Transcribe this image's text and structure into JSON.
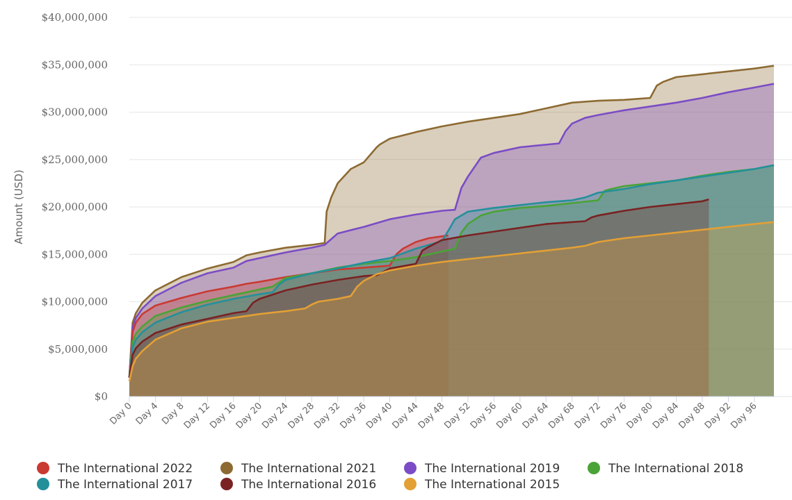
{
  "chart_data": {
    "type": "area",
    "ylabel": "Amount (USD)",
    "ylim": [
      0,
      40000000
    ],
    "y_ticks": [
      "$0",
      "$5,000,000",
      "$10,000,000",
      "$15,000,000",
      "$20,000,000",
      "$25,000,000",
      "$30,000,000",
      "$35,000,000",
      "$40,000,000"
    ],
    "y_tick_values": [
      0,
      5000000,
      10000000,
      15000000,
      20000000,
      25000000,
      30000000,
      35000000,
      40000000
    ],
    "xlim": [
      0,
      99
    ],
    "x_ticks": [
      "Day 0",
      "Day 4",
      "Day 8",
      "Day 12",
      "Day 16",
      "Day 20",
      "Day 24",
      "Day 28",
      "Day 32",
      "Day 36",
      "Day 40",
      "Day 44",
      "Day 48",
      "Day 52",
      "Day 56",
      "Day 60",
      "Day 64",
      "Day 68",
      "Day 72",
      "Day 76",
      "Day 80",
      "Day 84",
      "Day 88",
      "Day 92",
      "Day 96"
    ],
    "x_tick_values": [
      0,
      4,
      8,
      12,
      16,
      20,
      24,
      28,
      32,
      36,
      40,
      44,
      48,
      52,
      56,
      60,
      64,
      68,
      72,
      76,
      80,
      84,
      88,
      92,
      96
    ],
    "legend_position": "bottom",
    "series": [
      {
        "name": "The International 2021",
        "color": "#8c6a32",
        "x": [
          0,
          0.5,
          1,
          2,
          4,
          8,
          12,
          16,
          18,
          20,
          24,
          28,
          30,
          30.3,
          31,
          32,
          34,
          36,
          38,
          38.5,
          40,
          44,
          48,
          52,
          56,
          60,
          64,
          68,
          72,
          76,
          80,
          81,
          82,
          84,
          88,
          92,
          96,
          99
        ],
        "y": [
          2000000,
          7800000,
          8800000,
          9900000,
          11200000,
          12600000,
          13500000,
          14200000,
          14900000,
          15200000,
          15700000,
          16000000,
          16200000,
          19500000,
          21000000,
          22500000,
          24000000,
          24700000,
          26300000,
          26600000,
          27200000,
          27900000,
          28500000,
          29000000,
          29400000,
          29800000,
          30400000,
          31000000,
          31200000,
          31300000,
          31500000,
          32800000,
          33200000,
          33700000,
          34000000,
          34300000,
          34600000,
          34900000
        ]
      },
      {
        "name": "The International 2019",
        "color": "#7b4cc5",
        "x": [
          0,
          0.5,
          1,
          2,
          4,
          8,
          12,
          16,
          18,
          20,
          24,
          28,
          30,
          31,
          32,
          36,
          40,
          44,
          48,
          50,
          51,
          52,
          54,
          56,
          60,
          66,
          67,
          68,
          70,
          72,
          76,
          80,
          84,
          88,
          92,
          96,
          99
        ],
        "y": [
          2000000,
          7300000,
          8300000,
          9300000,
          10600000,
          12000000,
          13000000,
          13600000,
          14300000,
          14600000,
          15200000,
          15700000,
          16000000,
          16600000,
          17200000,
          17900000,
          18700000,
          19200000,
          19600000,
          19700000,
          22000000,
          23200000,
          25200000,
          25700000,
          26300000,
          26700000,
          28000000,
          28800000,
          29400000,
          29700000,
          30200000,
          30600000,
          31000000,
          31500000,
          32100000,
          32600000,
          33000000
        ]
      },
      {
        "name": "The International 2022",
        "color": "#c93a32",
        "x": [
          0,
          0.5,
          1,
          2,
          4,
          8,
          12,
          16,
          18,
          20,
          24,
          28,
          32,
          36,
          40,
          41,
          42,
          44,
          46,
          48,
          49
        ],
        "y": [
          2000000,
          6800000,
          7800000,
          8700000,
          9600000,
          10400000,
          11100000,
          11600000,
          11900000,
          12100000,
          12600000,
          13000000,
          13400000,
          13600000,
          13800000,
          15000000,
          15600000,
          16300000,
          16700000,
          16900000,
          17000000
        ]
      },
      {
        "name": "The International 2018",
        "color": "#4aa336",
        "x": [
          0,
          0.5,
          1,
          2,
          4,
          8,
          12,
          16,
          20,
          22,
          24,
          28,
          32,
          36,
          40,
          44,
          46,
          48,
          50,
          51,
          52,
          54,
          56,
          60,
          64,
          68,
          72,
          73,
          74,
          76,
          80,
          84,
          88,
          92,
          96,
          99
        ],
        "y": [
          2000000,
          5800000,
          6600000,
          7400000,
          8500000,
          9400000,
          10100000,
          10700000,
          11300000,
          11600000,
          12500000,
          13000000,
          13600000,
          14000000,
          14300000,
          14700000,
          15000000,
          15300000,
          15600000,
          17300000,
          18200000,
          19100000,
          19500000,
          19900000,
          20100000,
          20400000,
          20700000,
          21700000,
          21900000,
          22200000,
          22500000,
          22800000,
          23300000,
          23700000,
          24000000,
          24400000
        ]
      },
      {
        "name": "The International 2017",
        "color": "#23909a",
        "x": [
          0,
          0.5,
          1,
          2,
          4,
          8,
          12,
          16,
          20,
          22,
          23,
          24,
          28,
          32,
          36,
          40,
          44,
          46,
          48,
          49,
          50,
          52,
          56,
          60,
          64,
          68,
          70,
          72,
          76,
          80,
          84,
          88,
          92,
          96,
          99
        ],
        "y": [
          2000000,
          5200000,
          6000000,
          6800000,
          7800000,
          8900000,
          9700000,
          10300000,
          10800000,
          11000000,
          11800000,
          12300000,
          13000000,
          13500000,
          14100000,
          14600000,
          15600000,
          16000000,
          16400000,
          17500000,
          18700000,
          19500000,
          19900000,
          20200000,
          20500000,
          20700000,
          21000000,
          21500000,
          21900000,
          22400000,
          22800000,
          23200000,
          23600000,
          24000000,
          24400000
        ]
      },
      {
        "name": "The International 2016",
        "color": "#7a2222",
        "x": [
          0,
          0.5,
          1,
          2,
          4,
          8,
          12,
          16,
          18,
          19,
          20,
          24,
          28,
          32,
          36,
          38,
          40,
          44,
          45,
          46,
          48,
          52,
          56,
          60,
          64,
          68,
          70,
          71,
          72,
          76,
          80,
          84,
          88,
          89
        ],
        "y": [
          2000000,
          4400000,
          5100000,
          5800000,
          6700000,
          7600000,
          8200000,
          8800000,
          9000000,
          9900000,
          10300000,
          11200000,
          11800000,
          12300000,
          12700000,
          12800000,
          13500000,
          14000000,
          15400000,
          15800000,
          16500000,
          17000000,
          17400000,
          17800000,
          18200000,
          18400000,
          18500000,
          18900000,
          19100000,
          19600000,
          20000000,
          20300000,
          20600000,
          20800000
        ]
      },
      {
        "name": "The International 2015",
        "color": "#e3a035",
        "x": [
          0,
          0.5,
          1,
          2,
          4,
          8,
          12,
          16,
          20,
          24,
          27,
          28,
          29,
          32,
          34,
          35,
          36,
          38,
          40,
          44,
          48,
          52,
          56,
          60,
          64,
          68,
          70,
          71,
          72,
          76,
          80,
          84,
          88,
          92,
          96,
          99
        ],
        "y": [
          1600000,
          3200000,
          4000000,
          4800000,
          6000000,
          7200000,
          7900000,
          8300000,
          8700000,
          9000000,
          9300000,
          9700000,
          10000000,
          10300000,
          10600000,
          11600000,
          12200000,
          12900000,
          13300000,
          13800000,
          14200000,
          14500000,
          14800000,
          15100000,
          15400000,
          15700000,
          15900000,
          16100000,
          16300000,
          16700000,
          17000000,
          17300000,
          17600000,
          17900000,
          18200000,
          18400000
        ]
      }
    ],
    "legend_order": [
      2,
      0,
      1,
      3,
      4,
      5,
      6
    ]
  }
}
